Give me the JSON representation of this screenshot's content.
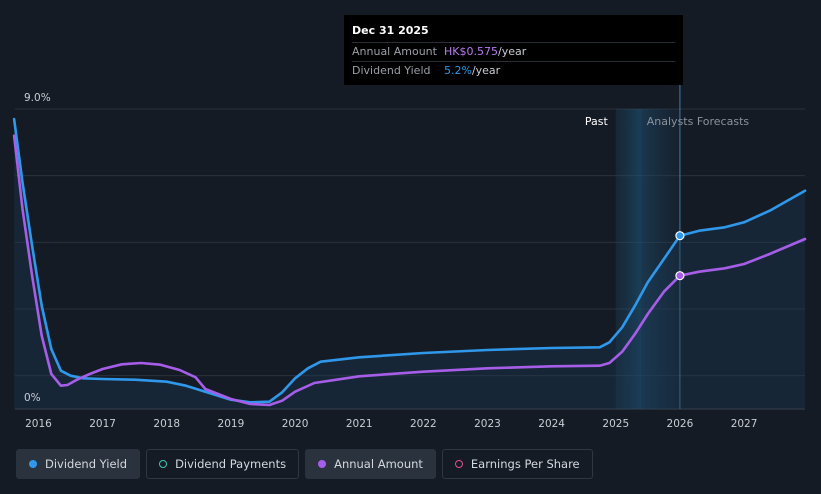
{
  "tooltip": {
    "date": "Dec 31 2025",
    "annual_label": "Annual Amount",
    "annual_value": "HK$0.575",
    "annual_unit": "/year",
    "yield_label": "Dividend Yield",
    "yield_value": "5.2%",
    "yield_unit": "/year"
  },
  "regions": {
    "past_label": "Past",
    "forecast_label": "Analysts Forecasts"
  },
  "legend": [
    {
      "label": "Dividend Yield",
      "color": "#2f98ea",
      "style": "filled",
      "active": true
    },
    {
      "label": "Dividend Payments",
      "color": "#3cc8b4",
      "style": "hollow",
      "active": false
    },
    {
      "label": "Annual Amount",
      "color": "#a65ee8",
      "style": "filled",
      "active": true
    },
    {
      "label": "Earnings Per Share",
      "color": "#e0508c",
      "style": "hollow",
      "active": false
    }
  ],
  "colors": {
    "yield": "#2f98ea",
    "annual": "#a65ee8",
    "grid": "#2a313b",
    "axis_text": "#c9cdd2"
  },
  "chart_data": {
    "type": "line",
    "ylim": [
      0,
      9.0
    ],
    "y_ticks": [
      "9.0%",
      "0%"
    ],
    "y_tick_values": [
      9.0,
      0
    ],
    "x_ticks": [
      "2016",
      "2017",
      "2018",
      "2019",
      "2020",
      "2021",
      "2022",
      "2023",
      "2024",
      "2025",
      "2026",
      "2027"
    ],
    "x_tick_values": [
      2016,
      2017,
      2018,
      2019,
      2020,
      2021,
      2022,
      2023,
      2024,
      2025,
      2026,
      2027
    ],
    "xlim": [
      2015.4,
      2027.95
    ],
    "past_end": 2025.0,
    "highlight_x": 2026.0,
    "series": [
      {
        "name": "Dividend Yield",
        "key": "yield",
        "x": [
          2015.62,
          2015.75,
          2015.9,
          2016.05,
          2016.2,
          2016.35,
          2016.5,
          2016.7,
          2017.0,
          2017.5,
          2018.0,
          2018.3,
          2018.6,
          2019.0,
          2019.3,
          2019.6,
          2019.8,
          2020.0,
          2020.2,
          2020.4,
          2021.0,
          2022.0,
          2023.0,
          2024.0,
          2024.75,
          2024.9,
          2025.1,
          2025.3,
          2025.5,
          2025.75,
          2026.0,
          2026.3,
          2026.7,
          2027.0,
          2027.4,
          2027.95
        ],
        "values": [
          8.7,
          6.8,
          4.9,
          3.1,
          1.8,
          1.15,
          1.0,
          0.92,
          0.9,
          0.88,
          0.82,
          0.7,
          0.52,
          0.28,
          0.2,
          0.22,
          0.5,
          0.92,
          1.22,
          1.42,
          1.55,
          1.68,
          1.77,
          1.83,
          1.85,
          2.0,
          2.45,
          3.1,
          3.8,
          4.5,
          5.2,
          5.35,
          5.45,
          5.6,
          5.95,
          6.55
        ]
      },
      {
        "name": "Annual Amount",
        "key": "annual",
        "x": [
          2015.62,
          2015.75,
          2015.9,
          2016.05,
          2016.2,
          2016.35,
          2016.45,
          2016.6,
          2016.8,
          2017.0,
          2017.3,
          2017.6,
          2017.9,
          2018.2,
          2018.45,
          2018.6,
          2019.0,
          2019.3,
          2019.6,
          2019.8,
          2020.0,
          2020.3,
          2021.0,
          2022.0,
          2023.0,
          2024.0,
          2024.75,
          2024.9,
          2025.1,
          2025.3,
          2025.5,
          2025.75,
          2026.0,
          2026.3,
          2026.7,
          2027.0,
          2027.4,
          2027.95
        ],
        "values": [
          8.2,
          6.0,
          4.0,
          2.2,
          1.05,
          0.7,
          0.72,
          0.88,
          1.05,
          1.2,
          1.34,
          1.38,
          1.33,
          1.17,
          0.95,
          0.6,
          0.3,
          0.15,
          0.12,
          0.25,
          0.52,
          0.78,
          0.98,
          1.12,
          1.22,
          1.28,
          1.3,
          1.38,
          1.72,
          2.25,
          2.85,
          3.52,
          4.0,
          4.12,
          4.22,
          4.35,
          4.65,
          5.1
        ]
      }
    ],
    "markers": [
      {
        "series": "yield",
        "x": 2026.0,
        "value": 5.2
      },
      {
        "series": "annual",
        "x": 2026.0,
        "value": 4.0
      }
    ]
  }
}
